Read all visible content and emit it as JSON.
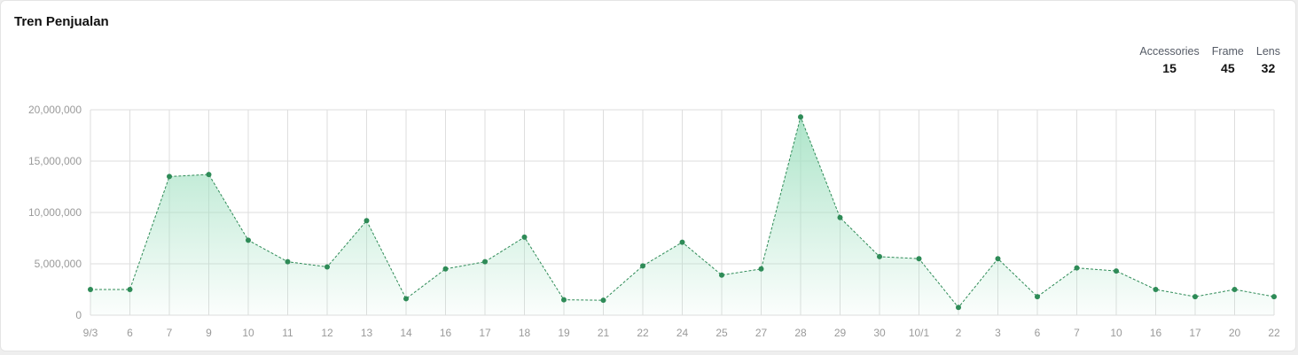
{
  "title": "Tren Penjualan",
  "summary": [
    {
      "label": "Accessories",
      "value": "15"
    },
    {
      "label": "Frame",
      "value": "45"
    },
    {
      "label": "Lens",
      "value": "32"
    }
  ],
  "colors": {
    "line": "#2e8b57",
    "fill": "#9fe0c0",
    "grid": "#dedede"
  },
  "chart_data": {
    "type": "area",
    "categories": [
      "9/3",
      "6",
      "7",
      "9",
      "10",
      "11",
      "12",
      "13",
      "14",
      "16",
      "17",
      "18",
      "19",
      "21",
      "22",
      "24",
      "25",
      "27",
      "28",
      "29",
      "30",
      "10/1",
      "2",
      "3",
      "6",
      "7",
      "10",
      "16",
      "17",
      "20",
      "22"
    ],
    "values": [
      2500000,
      2500000,
      13500000,
      13700000,
      7300000,
      5200000,
      4700000,
      9200000,
      1600000,
      4500000,
      5200000,
      7600000,
      1500000,
      1450000,
      4800000,
      7100000,
      3900000,
      4500000,
      19300000,
      9500000,
      5700000,
      5500000,
      750000,
      5500000,
      1800000,
      4600000,
      4300000,
      2500000,
      1800000,
      2500000,
      1800000
    ],
    "yticks": [
      "0",
      "5,000,000",
      "10,000,000",
      "15,000,000",
      "20,000,000"
    ],
    "ylim": [
      0,
      20000000
    ],
    "grid": true,
    "line_style": "dashed"
  }
}
